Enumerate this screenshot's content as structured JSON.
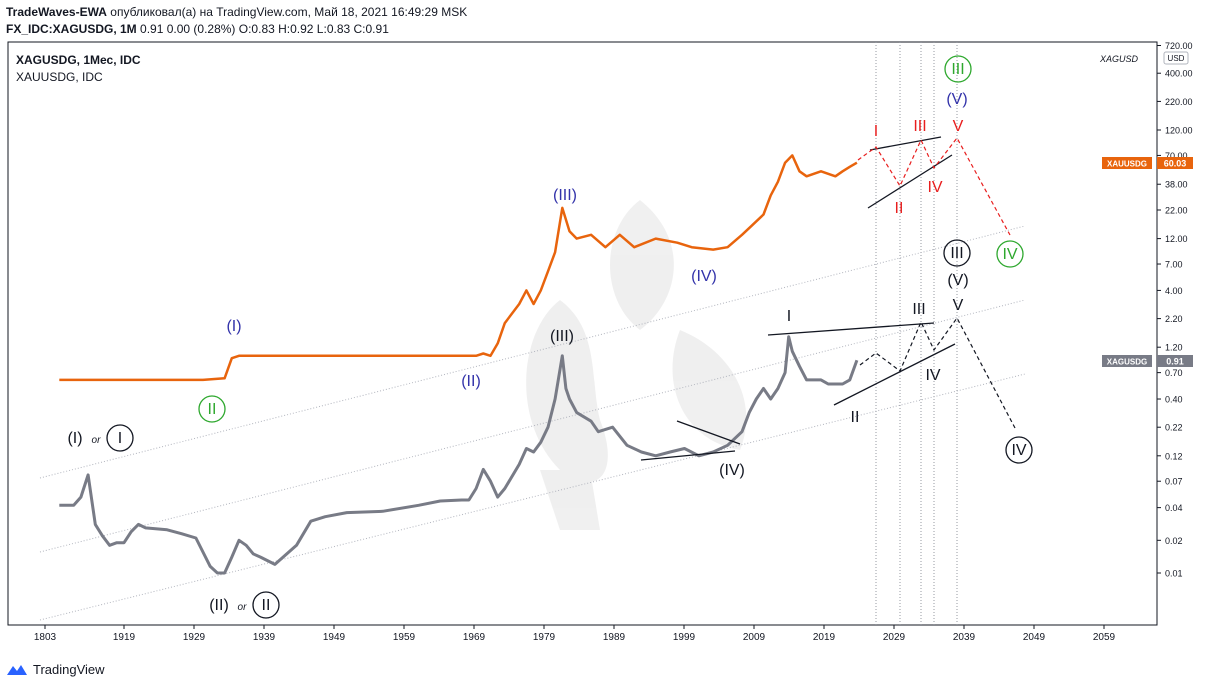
{
  "header": {
    "author": "TradeWaves-EWA",
    "published_text": "опубликовал(а) на TradingView.com, Май 18, 2021 16:49:29 MSK",
    "symbol_line": "FX_IDC:XAGUSDG, 1M",
    "ohlc_line": "0.91 0.00 (0.28%) O:0.83 H:0.92 L:0.83 C:0.91"
  },
  "footer": {
    "brand": "TradingView"
  },
  "colors": {
    "silver_line": "#787b86",
    "gold_line": "#e8640d",
    "red_wave": "#e81e1e",
    "green_wave": "#2ea82e",
    "blue_wave": "#3333aa",
    "black": "#131722"
  },
  "chart_data": {
    "type": "line",
    "title": "XAGUSDG, 1Мес, IDC",
    "subtitle": "XAUUSDG, IDC",
    "watermark_symbol": "XAGUSD",
    "y_scale": "log",
    "y_unit": "USD",
    "y_ticks": [
      "720.00",
      "400.00",
      "220.00",
      "120.00",
      "70.00",
      "38.00",
      "22.00",
      "12.00",
      "7.00",
      "4.00",
      "2.20",
      "1.20",
      "0.70",
      "0.40",
      "0.22",
      "0.12",
      "0.07",
      "0.04",
      "0.02",
      "0.01"
    ],
    "x_ticks": [
      "1803",
      "1919",
      "1929",
      "1939",
      "1949",
      "1959",
      "1969",
      "1979",
      "1989",
      "1999",
      "2009",
      "2019",
      "2029",
      "2039",
      "2049",
      "2059"
    ],
    "price_tags": [
      {
        "symbol": "XAUUSDG",
        "value": "60.03",
        "color": "#e8640d"
      },
      {
        "symbol": "XAGUSDG",
        "value": "0.91",
        "color": "#787b86"
      }
    ],
    "series": [
      {
        "name": "XAGUSDG",
        "color": "#787b86",
        "x": [
          1910,
          1912,
          1913,
          1914,
          1915,
          1916,
          1917,
          1918,
          1919,
          1920,
          1921,
          1922,
          1925,
          1927,
          1929,
          1931,
          1932,
          1933,
          1934,
          1935,
          1936,
          1937,
          1938,
          1940,
          1943,
          1945,
          1947,
          1950,
          1955,
          1960,
          1963,
          1966,
          1967,
          1968,
          1969,
          1970,
          1971,
          1972,
          1974,
          1975,
          1976,
          1977,
          1978,
          1979,
          1980,
          1980.5,
          1981,
          1982,
          1984,
          1985,
          1987,
          1989,
          1991,
          1993,
          1995,
          1997,
          1999,
          2001,
          2003,
          2005,
          2006,
          2007,
          2008,
          2009,
          2010,
          2011,
          2011.5,
          2012,
          2013,
          2014,
          2016,
          2017,
          2019,
          2020,
          2021
        ],
        "values": [
          0.042,
          0.042,
          0.05,
          0.08,
          0.028,
          0.022,
          0.018,
          0.019,
          0.019,
          0.024,
          0.028,
          0.026,
          0.025,
          0.023,
          0.021,
          0.0115,
          0.01,
          0.01,
          0.014,
          0.02,
          0.018,
          0.015,
          0.014,
          0.012,
          0.018,
          0.03,
          0.033,
          0.036,
          0.037,
          0.042,
          0.046,
          0.047,
          0.047,
          0.06,
          0.09,
          0.07,
          0.05,
          0.06,
          0.1,
          0.14,
          0.13,
          0.16,
          0.22,
          0.4,
          1.0,
          0.5,
          0.4,
          0.3,
          0.25,
          0.2,
          0.22,
          0.15,
          0.13,
          0.12,
          0.13,
          0.14,
          0.12,
          0.13,
          0.15,
          0.2,
          0.3,
          0.4,
          0.5,
          0.4,
          0.5,
          0.7,
          1.5,
          1.1,
          0.8,
          0.6,
          0.6,
          0.55,
          0.55,
          0.6,
          0.91
        ]
      },
      {
        "name": "XAUUSDG",
        "color": "#e8640d",
        "x": [
          1910,
          1920,
          1930,
          1933,
          1934,
          1935,
          1940,
          1950,
          1960,
          1968,
          1969,
          1970,
          1971,
          1972,
          1974,
          1975,
          1976,
          1977,
          1978,
          1979,
          1980,
          1981,
          1982,
          1984,
          1986,
          1988,
          1990,
          1993,
          1996,
          1998,
          2001,
          2003,
          2005,
          2006,
          2008,
          2009,
          2010,
          2011,
          2012,
          2013,
          2014,
          2016,
          2018,
          2019,
          2020,
          2021
        ],
        "values": [
          0.6,
          0.6,
          0.6,
          0.62,
          0.95,
          1.0,
          1.0,
          1.0,
          1.0,
          1.0,
          1.05,
          1.0,
          1.3,
          2.0,
          3.0,
          4.0,
          3.0,
          4.0,
          6.0,
          9.0,
          23,
          14,
          12,
          13,
          10,
          13,
          10,
          12,
          11,
          10,
          9.5,
          10,
          13,
          15,
          20,
          30,
          40,
          60,
          70,
          50,
          45,
          50,
          45,
          50,
          55,
          60.03
        ]
      }
    ],
    "wave_labels": [
      {
        "text": "(I)",
        "color": "#3333aa"
      },
      {
        "text": "(II)",
        "color": "#3333aa"
      },
      {
        "text": "(III)",
        "color": "#3333aa"
      },
      {
        "text": "(IV)",
        "color": "#3333aa"
      },
      {
        "text": "(V)",
        "color": "#3333aa"
      },
      {
        "text": "II",
        "color": "#2ea82e"
      },
      {
        "text": "III",
        "color": "#2ea82e"
      },
      {
        "text": "IV",
        "color": "#2ea82e"
      },
      {
        "text": "I",
        "color": "#e81e1e"
      },
      {
        "text": "II",
        "color": "#e81e1e"
      },
      {
        "text": "III",
        "color": "#e81e1e"
      },
      {
        "text": "IV",
        "color": "#e81e1e"
      },
      {
        "text": "V",
        "color": "#e81e1e"
      },
      {
        "text": "(I)",
        "color": "#131722"
      },
      {
        "text": "or",
        "color": "#131722"
      },
      {
        "text": "I",
        "color": "#131722"
      },
      {
        "text": "(II)",
        "color": "#131722"
      },
      {
        "text": "or",
        "color": "#131722"
      },
      {
        "text": "II",
        "color": "#131722"
      },
      {
        "text": "(III)",
        "color": "#131722"
      },
      {
        "text": "(IV)",
        "color": "#131722"
      },
      {
        "text": "I",
        "color": "#131722"
      },
      {
        "text": "II",
        "color": "#131722"
      },
      {
        "text": "III",
        "color": "#131722"
      },
      {
        "text": "IV",
        "color": "#131722"
      },
      {
        "text": "V",
        "color": "#131722"
      },
      {
        "text": "III",
        "color": "#131722"
      },
      {
        "text": "(V)",
        "color": "#131722"
      },
      {
        "text": "IV",
        "color": "#131722"
      }
    ]
  }
}
